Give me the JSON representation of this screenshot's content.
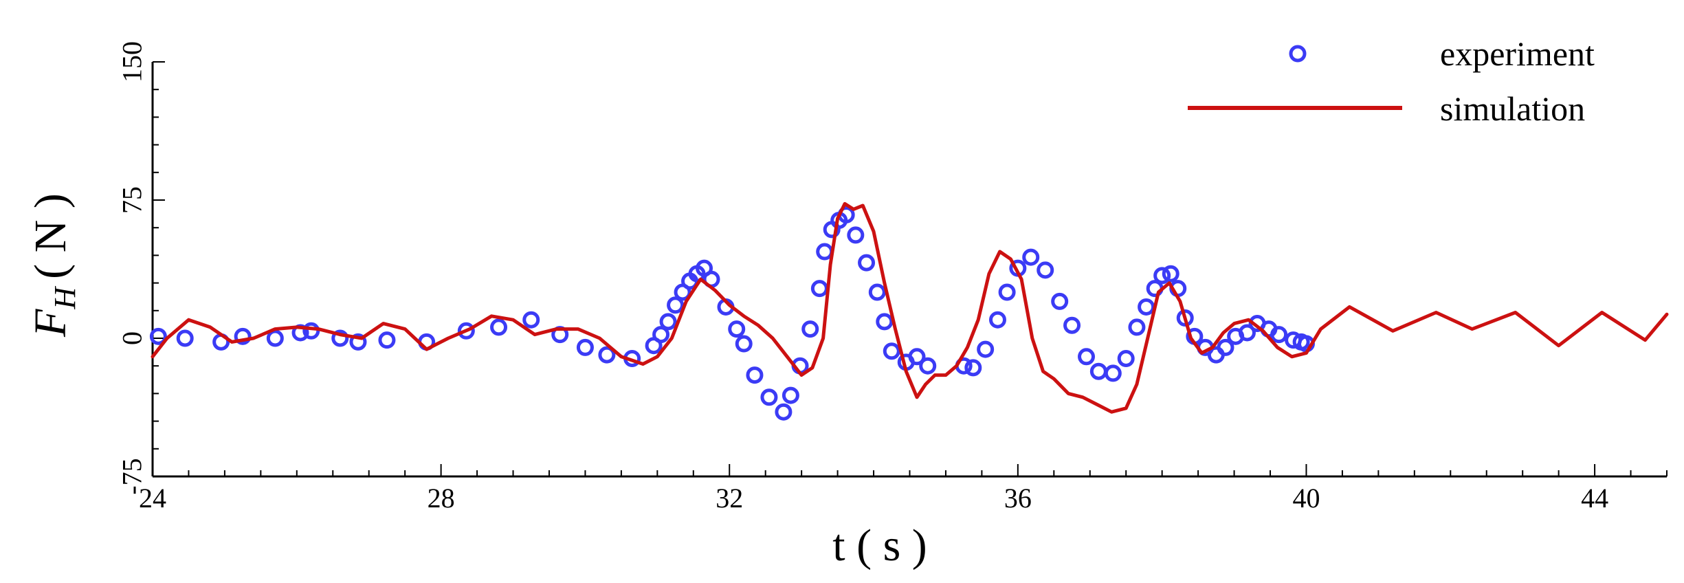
{
  "chart_data": {
    "type": "line",
    "title": "",
    "xlabel": "t ( s )",
    "ylabel": {
      "main": "F",
      "subscript": "H",
      "unit": "( N )"
    },
    "xlim": [
      24,
      45
    ],
    "ylim": [
      -75,
      150
    ],
    "x_ticks": [
      {
        "value": 24,
        "label": "24"
      },
      {
        "value": 28,
        "label": "28"
      },
      {
        "value": 32,
        "label": "32"
      },
      {
        "value": 36,
        "label": "36"
      },
      {
        "value": 40,
        "label": "40"
      },
      {
        "value": 44,
        "label": "44"
      }
    ],
    "y_ticks": [
      {
        "value": -75,
        "label": "-75"
      },
      {
        "value": 0,
        "label": "0"
      },
      {
        "value": 75,
        "label": "75"
      },
      {
        "value": 150,
        "label": "150"
      }
    ],
    "legend_position": "top-right",
    "grid": false,
    "colors": {
      "experiment": "#3b3bf5",
      "simulation": "#cc1111"
    },
    "series": [
      {
        "name": "experiment",
        "style": "markers",
        "x": [
          24.08,
          24.45,
          24.95,
          25.25,
          25.7,
          26.05,
          26.2,
          26.6,
          26.85,
          27.25,
          27.8,
          28.35,
          28.8,
          29.25,
          29.65,
          30.0,
          30.3,
          30.65,
          30.95,
          31.05,
          31.15,
          31.25,
          31.35,
          31.45,
          31.55,
          31.65,
          31.75,
          31.95,
          32.1,
          32.2,
          32.35,
          32.55,
          32.75,
          32.85,
          32.98,
          33.12,
          33.25,
          33.32,
          33.42,
          33.52,
          33.62,
          33.75,
          33.9,
          34.05,
          34.15,
          34.25,
          34.45,
          34.6,
          34.75,
          35.25,
          35.38,
          35.55,
          35.72,
          35.85,
          36.0,
          36.18,
          36.38,
          36.58,
          36.75,
          36.95,
          37.12,
          37.32,
          37.5,
          37.65,
          37.78,
          37.9,
          38.0,
          38.12,
          38.22,
          38.32,
          38.45,
          38.6,
          38.75,
          38.88,
          39.02,
          39.18,
          39.32,
          39.48,
          39.62,
          39.82,
          39.93,
          40.0
        ],
        "y": [
          1,
          0,
          -2,
          1,
          0,
          3,
          4,
          0,
          -2,
          -1,
          -2,
          4,
          6,
          10,
          2,
          -5,
          -9,
          -11,
          -4,
          2,
          9,
          18,
          25,
          31,
          35,
          38,
          32,
          17,
          5,
          -3,
          -20,
          -32,
          -40,
          -31,
          -15,
          5,
          27,
          47,
          59,
          64,
          67,
          56,
          41,
          25,
          9,
          -7,
          -13,
          -10,
          -15,
          -15,
          -16,
          -6,
          10,
          25,
          38,
          44,
          37,
          20,
          7,
          -10,
          -18,
          -19,
          -11,
          6,
          17,
          27,
          34,
          35,
          27,
          11,
          1,
          -5,
          -9,
          -5,
          1,
          3,
          8,
          5,
          2,
          -1,
          -2,
          -3
        ]
      },
      {
        "name": "simulation",
        "style": "line",
        "x": [
          24.0,
          24.2,
          24.5,
          24.8,
          25.1,
          25.4,
          25.7,
          26.0,
          26.3,
          26.6,
          26.9,
          27.2,
          27.5,
          27.8,
          28.1,
          28.4,
          28.7,
          29.0,
          29.3,
          29.6,
          29.9,
          30.2,
          30.5,
          30.8,
          31.0,
          31.2,
          31.4,
          31.6,
          31.8,
          32.0,
          32.2,
          32.4,
          32.6,
          32.8,
          33.0,
          33.15,
          33.3,
          33.4,
          33.5,
          33.6,
          33.72,
          33.85,
          34.0,
          34.15,
          34.3,
          34.45,
          34.6,
          34.72,
          34.85,
          35.0,
          35.15,
          35.3,
          35.45,
          35.6,
          35.75,
          35.9,
          36.05,
          36.2,
          36.35,
          36.5,
          36.7,
          36.9,
          37.1,
          37.3,
          37.5,
          37.65,
          37.8,
          37.95,
          38.1,
          38.25,
          38.4,
          38.55,
          38.7,
          38.85,
          39.0,
          39.2,
          39.4,
          39.6,
          39.8,
          40.0,
          40.2,
          40.6,
          41.2,
          41.8,
          42.3,
          42.9,
          43.5,
          44.1,
          44.7,
          45.0
        ],
        "y": [
          -10,
          0,
          10,
          6,
          -2,
          0,
          5,
          6,
          5,
          2,
          0,
          8,
          5,
          -6,
          0,
          5,
          12,
          10,
          2,
          5,
          5,
          0,
          -10,
          -14,
          -10,
          0,
          20,
          32,
          26,
          18,
          12,
          7,
          0,
          -10,
          -20,
          -16,
          0,
          40,
          65,
          73,
          70,
          72,
          58,
          30,
          5,
          -18,
          -32,
          -25,
          -20,
          -20,
          -15,
          -5,
          10,
          35,
          47,
          43,
          32,
          0,
          -18,
          -22,
          -30,
          -32,
          -36,
          -40,
          -38,
          -25,
          0,
          25,
          30,
          20,
          0,
          -8,
          -5,
          3,
          8,
          10,
          4,
          -5,
          -10,
          -8,
          5,
          17,
          4,
          14,
          5,
          14,
          -4,
          14,
          -1,
          13
        ]
      }
    ]
  }
}
